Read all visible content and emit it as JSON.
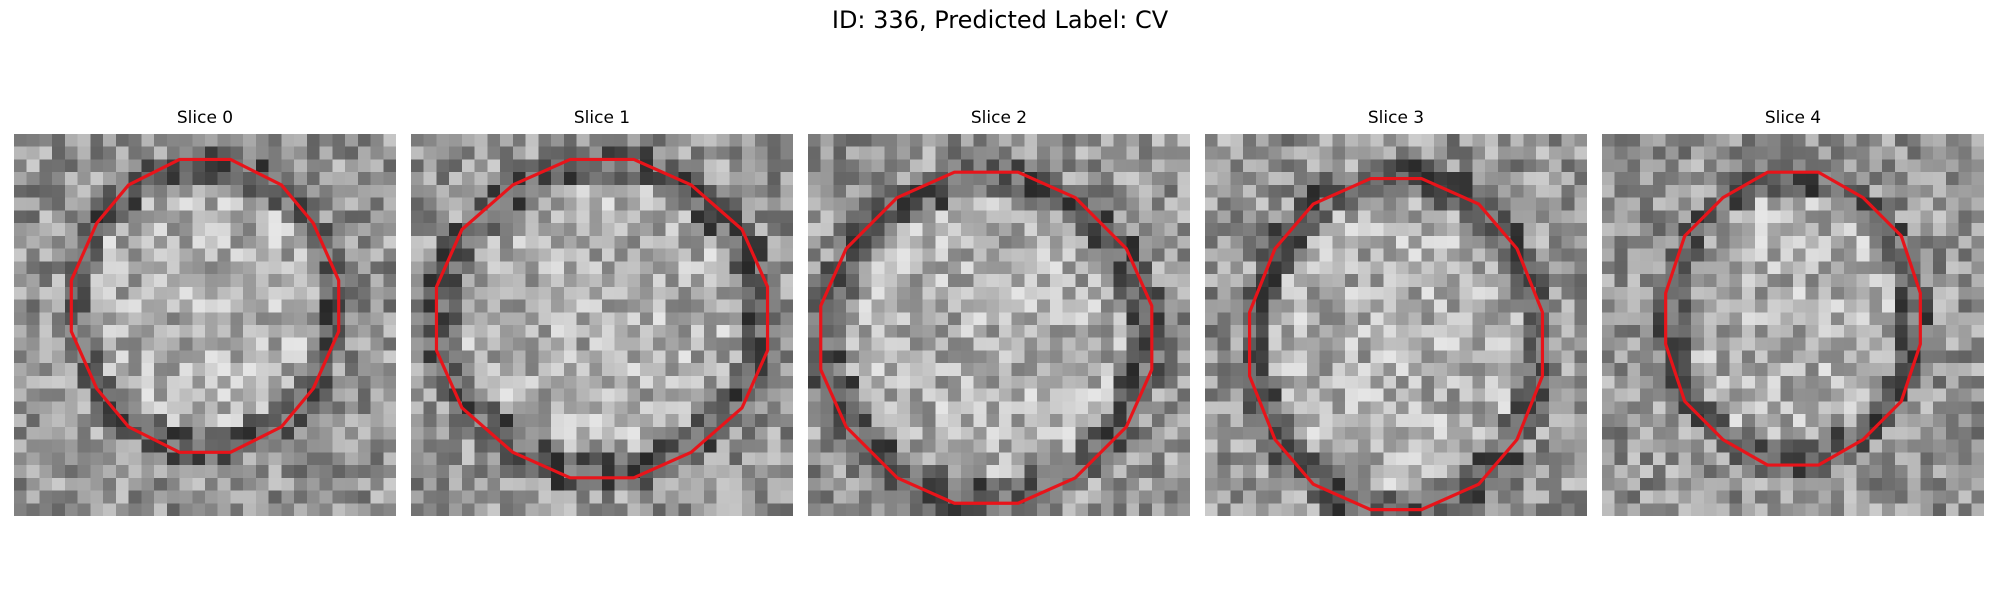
{
  "figure": {
    "title": "ID: 336, Predicted Label: CV"
  },
  "panels": [
    {
      "title": "Slice 0",
      "grid": 30,
      "center": [
        15,
        13.5
      ],
      "radius": [
        10.5,
        11.5
      ],
      "outline_color": "#e8141a",
      "seed": 11
    },
    {
      "title": "Slice 1",
      "grid": 30,
      "center": [
        15,
        14.5
      ],
      "radius": [
        13,
        12.5
      ],
      "outline_color": "#e8141a",
      "seed": 23
    },
    {
      "title": "Slice 2",
      "grid": 30,
      "center": [
        14,
        16
      ],
      "radius": [
        13,
        13
      ],
      "outline_color": "#e8141a",
      "seed": 37
    },
    {
      "title": "Slice 3",
      "grid": 30,
      "center": [
        15,
        16.5
      ],
      "radius": [
        11.5,
        13.5
      ],
      "outline_color": "#e8141a",
      "seed": 41
    },
    {
      "title": "Slice 4",
      "grid": 30,
      "center": [
        15,
        14.5
      ],
      "radius": [
        10,
        11.5
      ],
      "outline_color": "#e8141a",
      "seed": 53
    }
  ]
}
